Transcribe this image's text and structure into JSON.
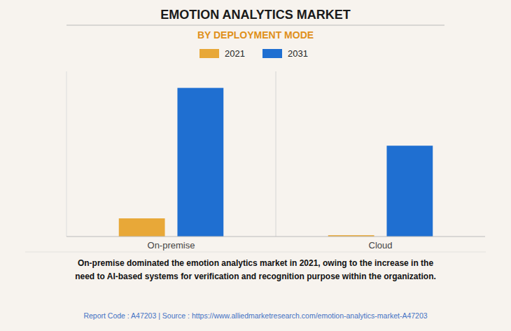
{
  "chart_data": {
    "type": "bar",
    "title": "EMOTION ANALYTICS MARKET",
    "subtitle": "BY DEPLOYMENT MODE",
    "categories": [
      "On-premise",
      "Cloud"
    ],
    "series": [
      {
        "name": "2021",
        "color": "#E8A838",
        "values": [
          0.55,
          0.04
        ]
      },
      {
        "name": "2031",
        "color": "#1F6FD1",
        "values": [
          4.5,
          2.75
        ]
      }
    ],
    "ylim": [
      0,
      5.0
    ],
    "yticks": [],
    "grid": false,
    "legend": "top",
    "tick_labels": "x",
    "annotations": [
      "On-premise dominated the emotion analytics market in 2021, owing to the increase in the\nneed to AI-based systems for verification and recognition purpose within the organization.",
      "Report Code : A47203  |  Source : https://www.alliedmarketresearch.com/emotion-analytics-market-A47203"
    ]
  }
}
